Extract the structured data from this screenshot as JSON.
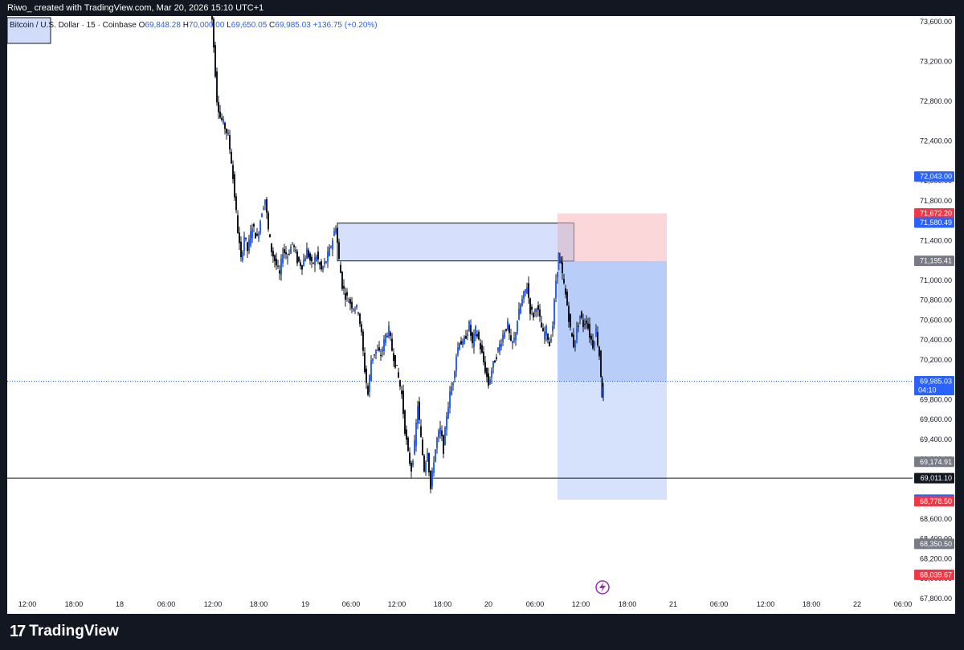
{
  "header": {
    "caption": "Riwo_ created with TradingView.com, Mar 20, 2026 15:10 UTC+1"
  },
  "legend": {
    "symbol": "Bitcoin / U.S. Dollar · 15 · Coinbase",
    "open_label": "O",
    "open": "69,848.28",
    "high_label": "H",
    "high": "70,000.00",
    "low_label": "L",
    "low": "69,650.05",
    "close_label": "C",
    "close": "69,985.03",
    "change": "+136.75 (+0.20%)"
  },
  "brand": {
    "name": "TradingView",
    "logo_icon": "tradingview-logo-icon"
  },
  "colors": {
    "frame": "#131722",
    "candle": "#131722",
    "accent_blue": "#2962ff",
    "stop_red": "#f23645",
    "zone_blue": "#d1dcfb",
    "target_blue": "#b8cdf8",
    "stop_pink": "#fcd7da",
    "gray_tag": "#787b86",
    "black_tag": "#131722"
  },
  "chart_data": {
    "type": "candlestick",
    "title": "Bitcoin / U.S. Dollar · 15 · Coinbase",
    "ylim": [
      67640,
      73700
    ],
    "xlim": [
      0,
      1100
    ],
    "y_ticks": [
      "73,600.00",
      "73,200.00",
      "72,800.00",
      "72,400.00",
      "72,000.00",
      "71,800.00",
      "71,400.00",
      "71,000.00",
      "70,800.00",
      "70,600.00",
      "70,400.00",
      "70,200.00",
      "69,800.00",
      "69,600.00",
      "69,400.00",
      "69,200.00",
      "68,800.00",
      "68,600.00",
      "68,400.00",
      "68,200.00",
      "68,000.00",
      "67,800.00"
    ],
    "y_tick_values": [
      73600,
      73200,
      72800,
      72400,
      72000,
      71800,
      71400,
      71000,
      70800,
      70600,
      70400,
      70200,
      69800,
      69600,
      69400,
      69200,
      68800,
      68600,
      68400,
      68200,
      68000,
      67800
    ],
    "x_ticks": [
      {
        "label": "12:00",
        "x": 34
      },
      {
        "label": "18:00",
        "x": 92
      },
      {
        "label": "18",
        "x": 149
      },
      {
        "label": "06:00",
        "x": 207
      },
      {
        "label": "12:00",
        "x": 265
      },
      {
        "label": "18:00",
        "x": 322
      },
      {
        "label": "19",
        "x": 380
      },
      {
        "label": "06:00",
        "x": 437
      },
      {
        "label": "12:00",
        "x": 494
      },
      {
        "label": "18:00",
        "x": 551
      },
      {
        "label": "20",
        "x": 608
      },
      {
        "label": "06:00",
        "x": 666
      },
      {
        "label": "12:00",
        "x": 723
      },
      {
        "label": "18:00",
        "x": 781
      },
      {
        "label": "21",
        "x": 838
      },
      {
        "label": "06:00",
        "x": 895
      },
      {
        "label": "12:00",
        "x": 953
      },
      {
        "label": "18:00",
        "x": 1010
      },
      {
        "label": "22",
        "x": 1067
      },
      {
        "label": "06:00",
        "x": 1124
      }
    ],
    "price_path": [
      [
        262,
        73750
      ],
      [
        266,
        73620
      ],
      [
        268,
        73350
      ],
      [
        272,
        72820
      ],
      [
        276,
        72640
      ],
      [
        280,
        72580
      ],
      [
        286,
        72450
      ],
      [
        290,
        72200
      ],
      [
        294,
        71850
      ],
      [
        298,
        71500
      ],
      [
        302,
        71200
      ],
      [
        306,
        71450
      ],
      [
        310,
        71300
      ],
      [
        316,
        71550
      ],
      [
        322,
        71420
      ],
      [
        328,
        71700
      ],
      [
        332,
        71820
      ],
      [
        336,
        71500
      ],
      [
        340,
        71300
      ],
      [
        346,
        71150
      ],
      [
        350,
        71050
      ],
      [
        354,
        71300
      ],
      [
        360,
        71250
      ],
      [
        366,
        71380
      ],
      [
        372,
        71200
      ],
      [
        378,
        71150
      ],
      [
        384,
        71300
      ],
      [
        390,
        71150
      ],
      [
        396,
        71250
      ],
      [
        402,
        71100
      ],
      [
        408,
        71200
      ],
      [
        414,
        71350
      ],
      [
        420,
        71550
      ],
      [
        424,
        71200
      ],
      [
        428,
        70950
      ],
      [
        432,
        70850
      ],
      [
        440,
        70750
      ],
      [
        448,
        70700
      ],
      [
        452,
        70450
      ],
      [
        456,
        70100
      ],
      [
        460,
        69850
      ],
      [
        464,
        70200
      ],
      [
        470,
        70300
      ],
      [
        476,
        70250
      ],
      [
        482,
        70450
      ],
      [
        486,
        70500
      ],
      [
        490,
        70300
      ],
      [
        496,
        70100
      ],
      [
        502,
        69850
      ],
      [
        506,
        69500
      ],
      [
        510,
        69250
      ],
      [
        514,
        69100
      ],
      [
        518,
        69350
      ],
      [
        522,
        69750
      ],
      [
        526,
        69400
      ],
      [
        530,
        69100
      ],
      [
        534,
        69300
      ],
      [
        538,
        68900
      ],
      [
        542,
        69200
      ],
      [
        546,
        69400
      ],
      [
        550,
        69500
      ],
      [
        554,
        69300
      ],
      [
        558,
        69650
      ],
      [
        562,
        69850
      ],
      [
        566,
        70000
      ],
      [
        570,
        70250
      ],
      [
        574,
        70400
      ],
      [
        578,
        70350
      ],
      [
        582,
        70450
      ],
      [
        586,
        70550
      ],
      [
        590,
        70350
      ],
      [
        594,
        70500
      ],
      [
        598,
        70400
      ],
      [
        602,
        70250
      ],
      [
        606,
        70100
      ],
      [
        610,
        69950
      ],
      [
        614,
        70100
      ],
      [
        618,
        70200
      ],
      [
        622,
        70300
      ],
      [
        626,
        70400
      ],
      [
        630,
        70500
      ],
      [
        634,
        70550
      ],
      [
        638,
        70350
      ],
      [
        642,
        70400
      ],
      [
        646,
        70600
      ],
      [
        650,
        70750
      ],
      [
        654,
        70850
      ],
      [
        658,
        70950
      ],
      [
        662,
        70700
      ],
      [
        666,
        70650
      ],
      [
        670,
        70750
      ],
      [
        674,
        70600
      ],
      [
        678,
        70450
      ],
      [
        682,
        70500
      ],
      [
        686,
        70350
      ],
      [
        690,
        70550
      ],
      [
        694,
        71000
      ],
      [
        697,
        71250
      ],
      [
        700,
        71150
      ],
      [
        704,
        70950
      ],
      [
        708,
        70750
      ],
      [
        712,
        70500
      ],
      [
        716,
        70350
      ],
      [
        720,
        70500
      ],
      [
        724,
        70650
      ],
      [
        728,
        70550
      ],
      [
        732,
        70600
      ],
      [
        736,
        70450
      ],
      [
        740,
        70350
      ],
      [
        744,
        70500
      ],
      [
        748,
        70250
      ],
      [
        751,
        69850
      ],
      [
        753,
        69900
      ]
    ],
    "annotations": {
      "supply_zone": {
        "x0": 420,
        "x1": 714,
        "y_top": 71575,
        "y_bottom": 71195
      },
      "stop_zone": {
        "x0": 694,
        "x1": 830,
        "y_top": 71672.2,
        "y_bottom": 71195.41
      },
      "target_zone": {
        "x0": 694,
        "x1": 830,
        "y_top": 71195.41,
        "y_bottom": 68794.66
      },
      "horizontal_line": {
        "price": 69011.1
      },
      "current_price_line": {
        "price": 69985.03
      },
      "topleft_box": {
        "x0": 9,
        "x1": 63,
        "y_top": 73700,
        "y_bottom": 73500
      }
    },
    "price_tags": [
      {
        "text": "72,043.00",
        "price": 72043.0,
        "kind": "blue"
      },
      {
        "text": "71,672.20",
        "price": 71672.2,
        "kind": "red"
      },
      {
        "text": "71,580.49",
        "price": 71580.49,
        "kind": "blue"
      },
      {
        "text": "71,195.41",
        "price": 71195.41,
        "kind": "gray"
      },
      {
        "text": "69,985.03",
        "price": 69985.03,
        "kind": "blue",
        "sub": "04:10"
      },
      {
        "text": "69,174.91",
        "price": 69174.91,
        "kind": "gray"
      },
      {
        "text": "69,011.10",
        "price": 69011.1,
        "kind": "black"
      },
      {
        "text": "68,794.66",
        "price": 68794.66,
        "kind": "blue"
      },
      {
        "text": "68,778.50",
        "price": 68778.5,
        "kind": "red"
      },
      {
        "text": "68,350.50",
        "price": 68350.5,
        "kind": "gray"
      },
      {
        "text": "68,039.67",
        "price": 68039.67,
        "kind": "red"
      }
    ]
  }
}
